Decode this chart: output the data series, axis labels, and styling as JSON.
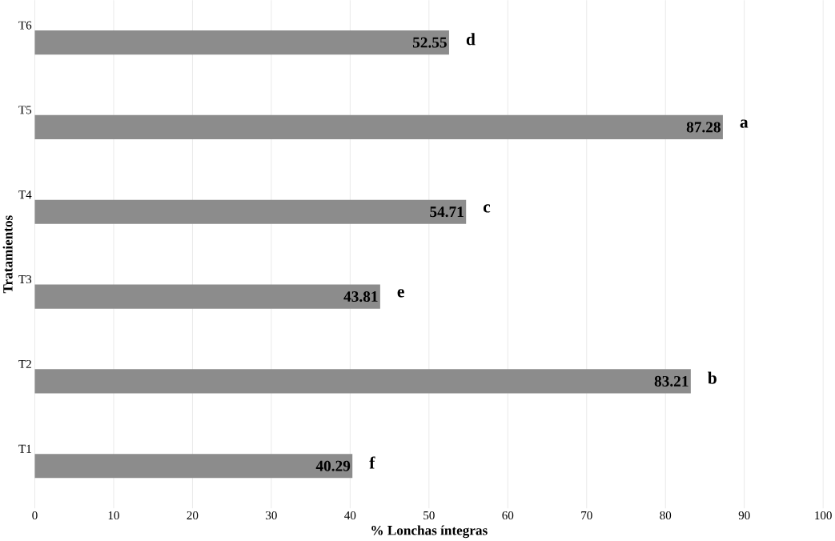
{
  "chart_data": {
    "type": "bar",
    "orientation": "horizontal",
    "xlabel": "% Lonchas íntegras",
    "ylabel": "Tratamientos",
    "categories": [
      "T6",
      "T5",
      "T4",
      "T3",
      "T2",
      "T1"
    ],
    "values": [
      52.55,
      87.28,
      54.71,
      43.81,
      83.21,
      40.29
    ],
    "value_labels": [
      "52.55",
      "87.28",
      "54.71",
      "43.81",
      "83.21",
      "40.29"
    ],
    "color": "#8c8c8c",
    "xlim": [
      0,
      100
    ],
    "xticks": [
      0,
      10,
      20,
      30,
      40,
      50,
      60,
      70,
      80,
      90,
      100
    ],
    "grid": "x",
    "annotations": [
      "d",
      "a",
      "c",
      "e",
      "b",
      "f"
    ]
  }
}
